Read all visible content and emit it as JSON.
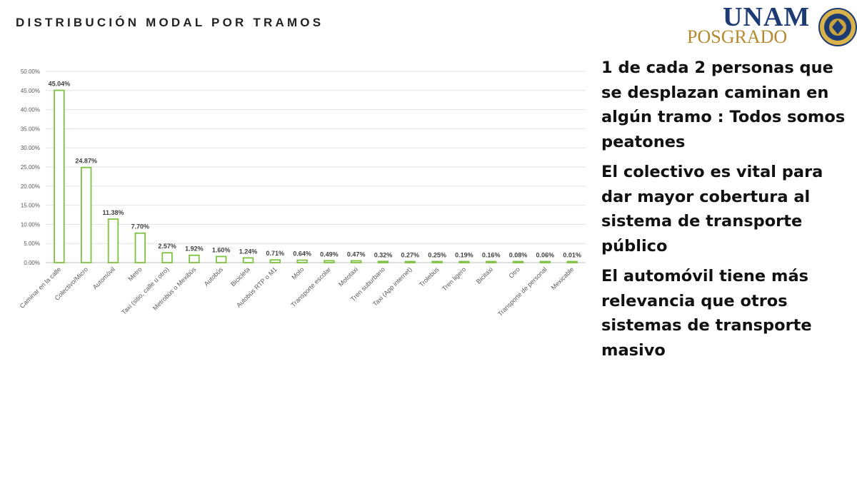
{
  "slide": {
    "title": "DISTRIBUCIÓN MODAL POR TRAMOS"
  },
  "logo": {
    "top_text": "UNAM",
    "bottom_text": "POSGRADO",
    "colors": {
      "navy": "#1d3b73",
      "gold": "#b38a2e"
    }
  },
  "bullets": [
    "1 de cada 2 personas que se desplazan caminan en algún tramo : Todos somos peatones",
    "El colectivo es vital para dar mayor cobertura al sistema de transporte público",
    "El automóvil tiene más relevancia que otros sistemas de transporte masivo"
  ],
  "chart_data": {
    "type": "bar",
    "title": "",
    "xlabel": "",
    "ylabel": "",
    "ylim": [
      0,
      50
    ],
    "y_ticks": [
      "0.00%",
      "5.00%",
      "10.00%",
      "15.00%",
      "20.00%",
      "25.00%",
      "30.00%",
      "35.00%",
      "40.00%",
      "45.00%",
      "50.00%"
    ],
    "grid": true,
    "legend": "none",
    "bar_style": {
      "fill": "#ffffff",
      "stroke": "#7dc242"
    },
    "categories": [
      "Caminar en la calle",
      "Colectivo/Micro",
      "Automóvil",
      "Metro",
      "Taxi (sitio, calle u otro)",
      "Metrobús o Mexibús",
      "Autobús",
      "Bicicleta",
      "Autobús RTP o M1",
      "Moto",
      "Transporte escolar",
      "Mototaxi",
      "Tren suburbano",
      "Taxi (App internet)",
      "Trolebús",
      "Tren ligero",
      "Bicitaxi",
      "Otro",
      "Transporte de personal",
      "Mexicable"
    ],
    "values": [
      45.04,
      24.87,
      11.38,
      7.7,
      2.57,
      1.92,
      1.6,
      1.24,
      0.71,
      0.64,
      0.49,
      0.47,
      0.32,
      0.27,
      0.25,
      0.19,
      0.16,
      0.08,
      0.06,
      0.01
    ],
    "data_labels": [
      "45.04%",
      "24.87%",
      "11.38%",
      "7.70%",
      "2.57%",
      "1.92%",
      "1.60%",
      "1.24%",
      "0.71%",
      "0.64%",
      "0.49%",
      "0.47%",
      "0.32%",
      "0.27%",
      "0.25%",
      "0.19%",
      "0.16%",
      "0.08%",
      "0.06%",
      "0.01%"
    ]
  }
}
